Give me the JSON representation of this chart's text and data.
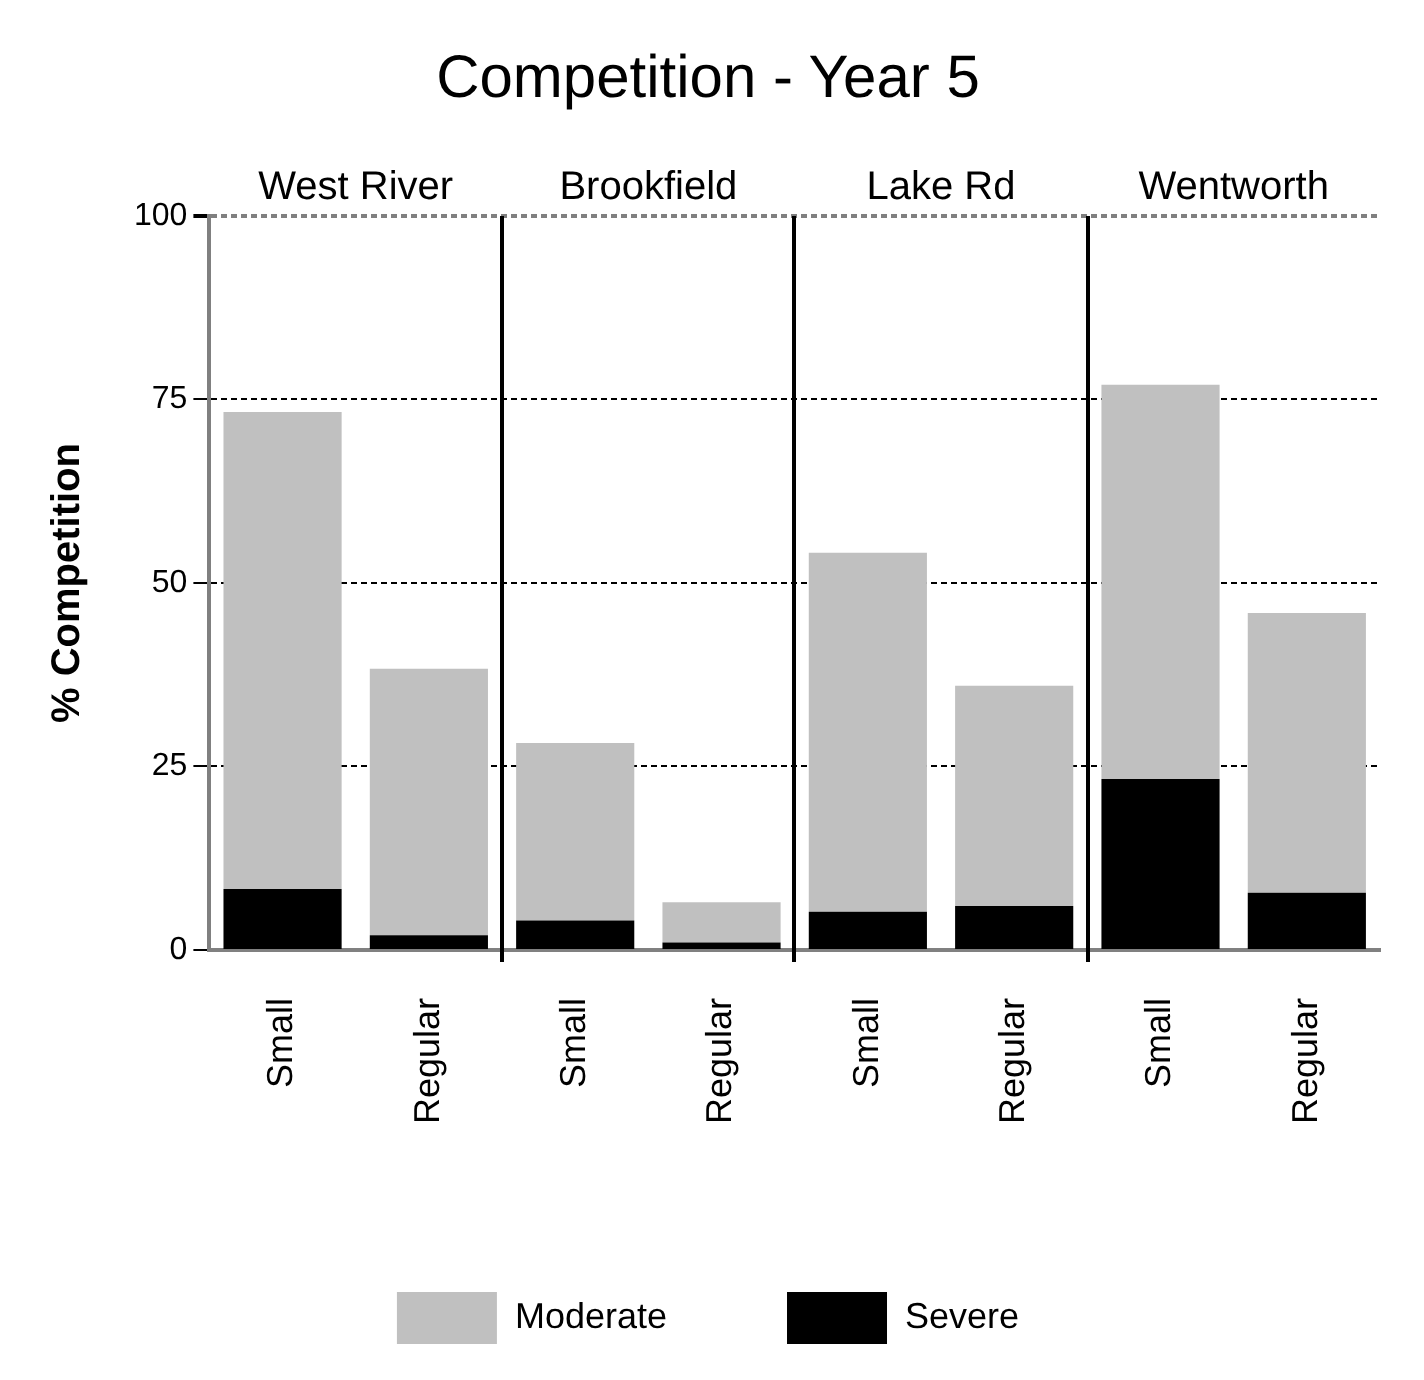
{
  "chart_data": {
    "type": "bar",
    "title": "Competition - Year 5",
    "ylabel": "% Competition",
    "categories": [
      "Small",
      "Regular",
      "Small",
      "Regular",
      "Small",
      "Regular",
      "Small",
      "Regular"
    ],
    "annotations": [
      "West River",
      "Brookfield",
      "Lake Rd",
      "Wentworth"
    ],
    "stacked": true,
    "series": [
      {
        "name": "Severe",
        "color": "#000000",
        "values": [
          8.3,
          2,
          4,
          1,
          5.2,
          6,
          23.3,
          7.8
        ]
      },
      {
        "name": "Moderate",
        "color": "#c0c0c0",
        "values": [
          65,
          36.3,
          24.2,
          5.5,
          48.9,
          30,
          53.7,
          38.1
        ]
      }
    ],
    "ylim": [
      0,
      100
    ],
    "yticks": [
      0,
      25,
      50,
      75,
      100
    ],
    "grid": "y",
    "legend": "bottom"
  }
}
